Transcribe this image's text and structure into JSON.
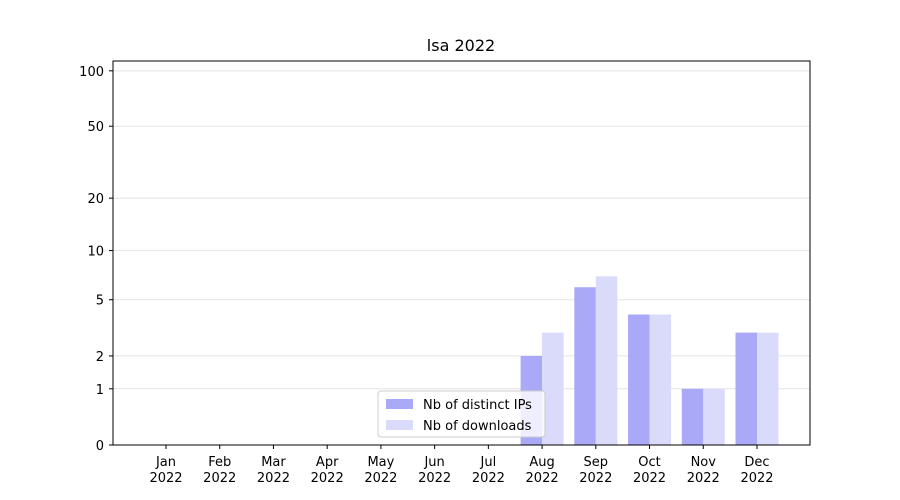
{
  "chart_data": {
    "type": "bar",
    "title": "lsa 2022",
    "categories": [
      "Jan 2022",
      "Feb 2022",
      "Mar 2022",
      "Apr 2022",
      "May 2022",
      "Jun 2022",
      "Jul 2022",
      "Aug 2022",
      "Sep 2022",
      "Oct 2022",
      "Nov 2022",
      "Dec 2022"
    ],
    "series": [
      {
        "name": "Nb of distinct IPs",
        "color": "#a9a9f7",
        "values": [
          0,
          0,
          0,
          0,
          0,
          0,
          0,
          2,
          6,
          4,
          1,
          3
        ]
      },
      {
        "name": "Nb of downloads",
        "color": "#dadafb",
        "values": [
          0,
          0,
          0,
          0,
          0,
          0,
          0,
          3,
          7,
          4,
          1,
          3
        ]
      }
    ],
    "yscale": "log1p",
    "ylim": [
      0,
      113
    ],
    "yticks": [
      0,
      1,
      2,
      5,
      10,
      20,
      50,
      100
    ],
    "grid": true,
    "legend": "lower center"
  }
}
